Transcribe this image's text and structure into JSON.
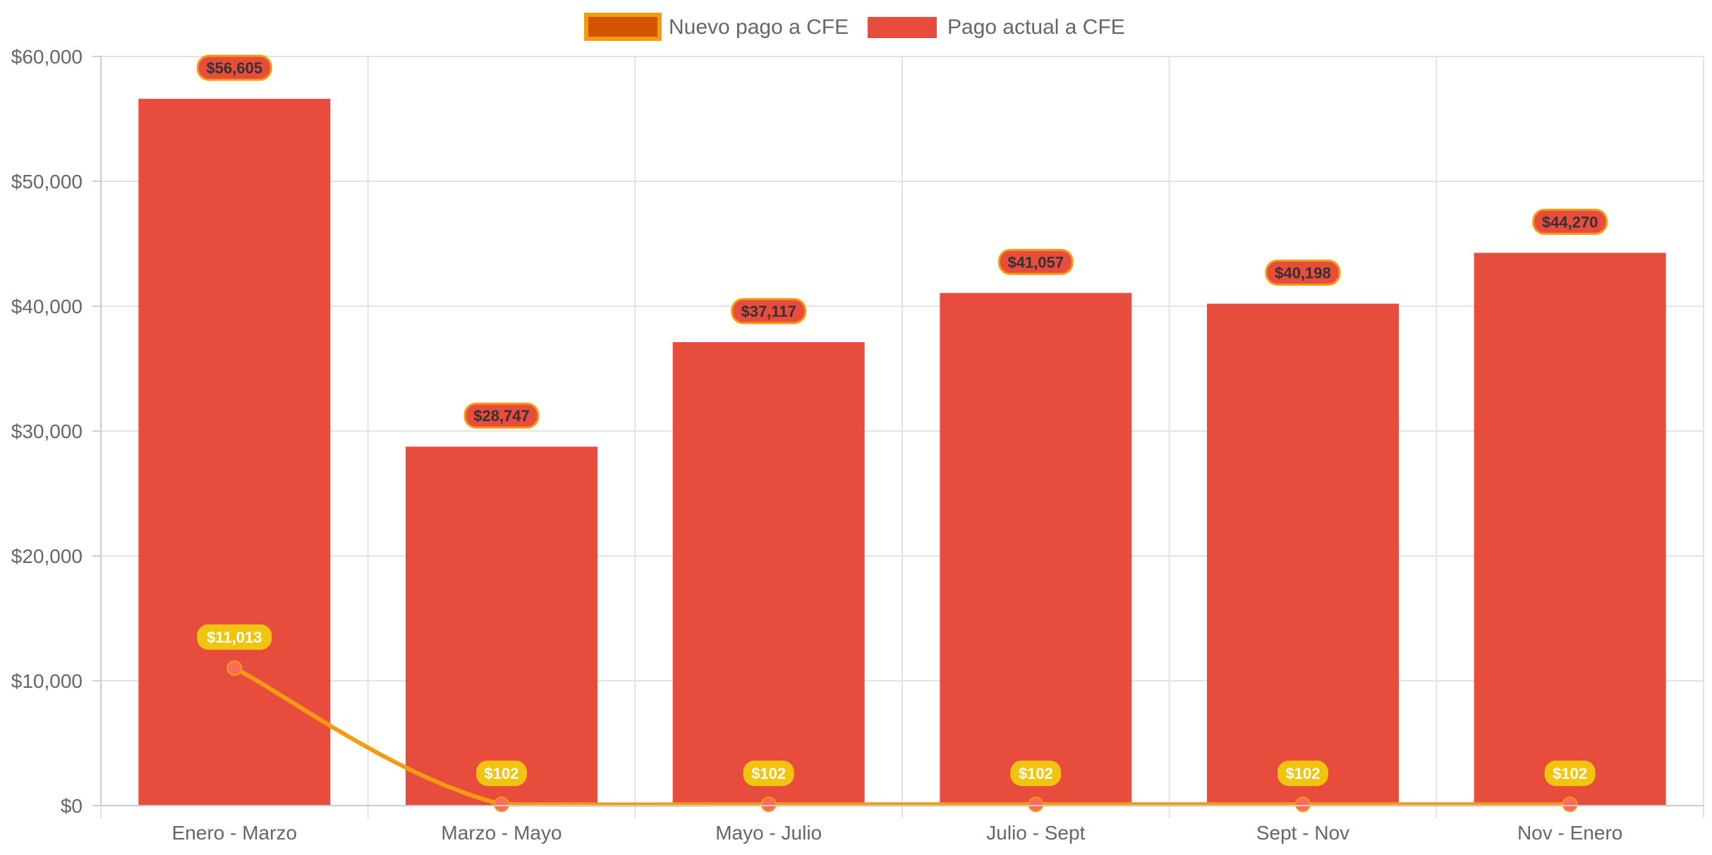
{
  "chart_data": {
    "type": "bar",
    "categories": [
      "Enero - Marzo",
      "Marzo - Mayo",
      "Mayo - Julio",
      "Julio - Sept",
      "Sept - Nov",
      "Nov - Enero"
    ],
    "series": [
      {
        "name": "Nuevo pago a CFE",
        "type": "line",
        "values": [
          11013,
          102,
          102,
          102,
          102,
          102
        ],
        "labels": [
          "$11,013",
          "$102",
          "$102",
          "$102",
          "$102",
          "$102"
        ],
        "color": "#f39c12",
        "fill_color": "#d35400",
        "point_color": "#ff6b5b",
        "label_bg": "#f1c40f"
      },
      {
        "name": "Pago actual a CFE",
        "type": "bar",
        "values": [
          56605,
          28747,
          37117,
          41057,
          40198,
          44270
        ],
        "labels": [
          "$56,605",
          "$28,747",
          "$37,117",
          "$41,057",
          "$40,198",
          "$44,270"
        ],
        "color": "#e74c3c",
        "label_border": "#f39c12"
      }
    ],
    "y_ticks": [
      "$0",
      "$10,000",
      "$20,000",
      "$30,000",
      "$40,000",
      "$50,000",
      "$60,000"
    ],
    "ylim": [
      0,
      60000
    ],
    "grid": true,
    "legend": "top-center",
    "title": "",
    "xlabel": "",
    "ylabel": ""
  }
}
